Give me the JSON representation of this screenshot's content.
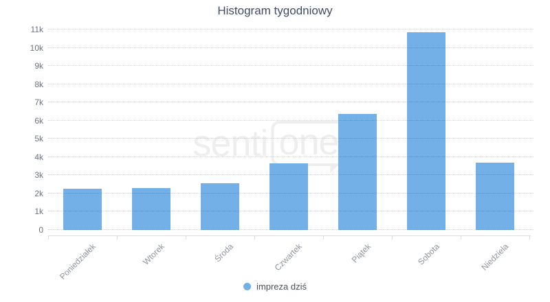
{
  "page": {
    "title": "Histogram tygodniowy"
  },
  "watermark": {
    "prefix": "senti",
    "boxed": "one"
  },
  "colors": {
    "bar": "#73b0e7",
    "grid_dots": "rgba(0,0,0,0.16)",
    "axis_line": "#d8dde6",
    "title_text": "#3e4d60",
    "y_label_text": "#6b7380",
    "x_label_text": "#8e949c",
    "legend_text": "#4a515c",
    "watermark": "#eeeeee",
    "background": "#ffffff"
  },
  "chart_data": {
    "type": "bar",
    "title": "Histogram tygodniowy",
    "categories": [
      "Poniedziałek",
      "Wtorek",
      "Środa",
      "Czwartek",
      "Piątek",
      "Sobota",
      "Niedziela"
    ],
    "series": [
      {
        "name": "impreza dziś",
        "color": "#73b0e7",
        "values": [
          2250,
          2300,
          2550,
          3650,
          6350,
          10850,
          3700
        ]
      }
    ],
    "xlabel": "",
    "ylabel": "",
    "ylim": [
      0,
      11000
    ],
    "yticks": [
      {
        "value": 0,
        "label": "0"
      },
      {
        "value": 1000,
        "label": "1k"
      },
      {
        "value": 2000,
        "label": "2k"
      },
      {
        "value": 3000,
        "label": "3k"
      },
      {
        "value": 4000,
        "label": "4k"
      },
      {
        "value": 5000,
        "label": "5k"
      },
      {
        "value": 6000,
        "label": "6k"
      },
      {
        "value": 7000,
        "label": "7k"
      },
      {
        "value": 8000,
        "label": "8k"
      },
      {
        "value": 9000,
        "label": "9k"
      },
      {
        "value": 10000,
        "label": "10k"
      },
      {
        "value": 11000,
        "label": "11k"
      }
    ],
    "grid": "horizontal-dotted",
    "legend_position": "bottom-center",
    "x_label_rotation": -45
  }
}
